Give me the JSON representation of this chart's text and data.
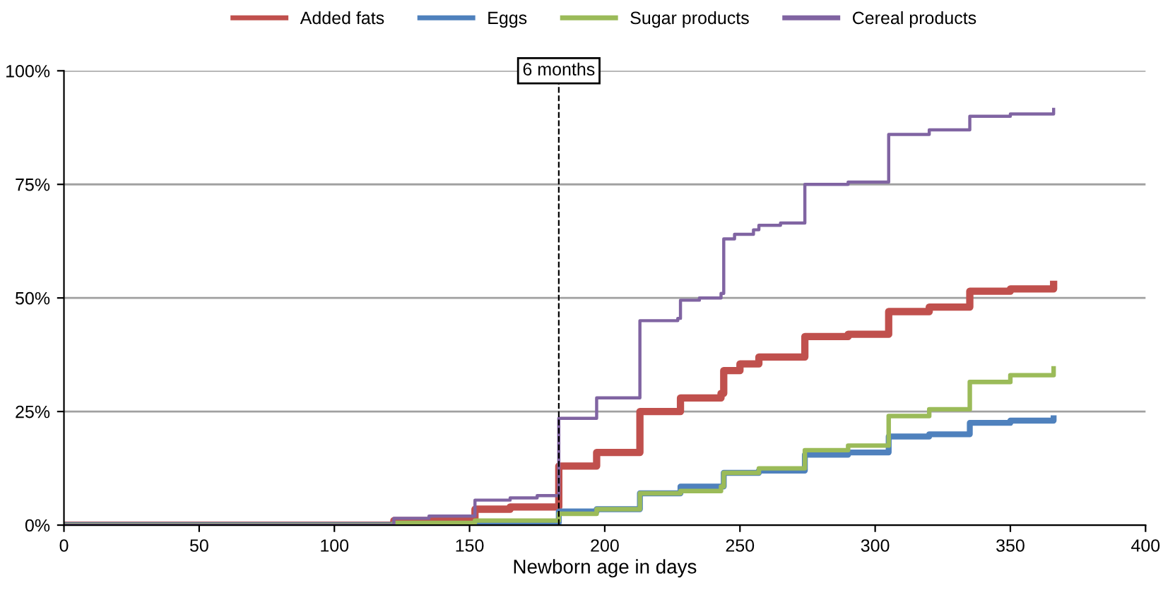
{
  "chart_data": {
    "type": "step",
    "xlabel": "Newborn age in days",
    "xlim": [
      0,
      400
    ],
    "xticks": [
      0,
      50,
      100,
      150,
      200,
      250,
      300,
      350,
      400
    ],
    "ylim": [
      0,
      100
    ],
    "yticks": [
      {
        "value": 0,
        "label": "0%"
      },
      {
        "value": 25,
        "label": "25%"
      },
      {
        "value": 50,
        "label": "50%"
      },
      {
        "value": 75,
        "label": "75%"
      },
      {
        "value": 100,
        "label": "100%"
      }
    ],
    "grid": "y",
    "legend": "top",
    "line_style": "solid",
    "marker": "none",
    "ref_lines": [
      {
        "axis": "x",
        "value": 183,
        "label": "6 months",
        "color": "#000000",
        "line_style": "dashed"
      }
    ],
    "series": [
      {
        "name": "Added fats",
        "color": "#c0504d",
        "x": [
          0,
          122,
          152,
          165,
          183,
          197,
          213,
          228,
          243,
          244,
          250,
          257,
          274,
          290,
          305,
          320,
          335,
          350,
          366
        ],
        "values": [
          0,
          1,
          3.5,
          4,
          13,
          16,
          25,
          28,
          29,
          34,
          35.5,
          37,
          41.5,
          42,
          47,
          48,
          51.5,
          52,
          53
        ]
      },
      {
        "name": "Eggs",
        "color": "#4f81bd",
        "x": [
          0,
          122,
          152,
          183,
          197,
          213,
          228,
          244,
          257,
          274,
          290,
          305,
          320,
          335,
          350,
          366
        ],
        "values": [
          0,
          0.3,
          0.5,
          3,
          3.5,
          7,
          8.5,
          11.5,
          12,
          15.5,
          16,
          19.5,
          20,
          22.5,
          23,
          23.5
        ]
      },
      {
        "name": "Sugar products",
        "color": "#9bbb59",
        "x": [
          0,
          122,
          152,
          183,
          197,
          213,
          228,
          243,
          244,
          257,
          274,
          290,
          305,
          320,
          335,
          350,
          366
        ],
        "values": [
          0,
          0.5,
          1,
          2.5,
          3.5,
          7,
          7.5,
          8.5,
          11.5,
          12.5,
          16.5,
          17.5,
          24,
          25.5,
          31.5,
          33,
          34.5
        ]
      },
      {
        "name": "Cereal products",
        "color": "#8064a2",
        "x": [
          0,
          122,
          135,
          152,
          165,
          175,
          183,
          197,
          213,
          227,
          228,
          235,
          243,
          244,
          248,
          255,
          257,
          265,
          274,
          290,
          305,
          320,
          335,
          350,
          366
        ],
        "values": [
          0,
          1.5,
          2,
          5.5,
          6,
          6.5,
          23.5,
          28,
          45,
          45.5,
          49.5,
          50,
          51,
          63,
          64,
          65,
          66,
          66.5,
          75,
          75.5,
          86,
          87,
          90,
          90.5,
          91.5
        ]
      }
    ]
  }
}
